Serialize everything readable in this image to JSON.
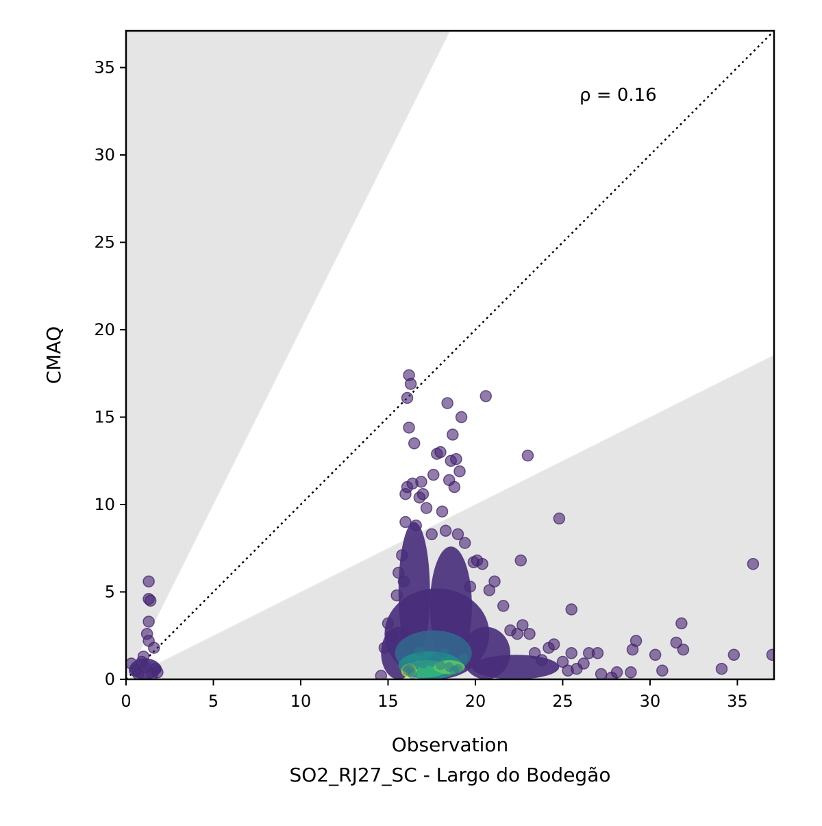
{
  "chart_data": {
    "type": "scatter",
    "title": "",
    "xlabel": "Observation",
    "ylabel": "CMAQ",
    "subtitle": "SO2_RJ27_SC - Largo do Bodegão",
    "xlim": [
      0,
      37.1
    ],
    "ylim": [
      0,
      37.1
    ],
    "xticks": [
      "0",
      "5",
      "10",
      "15",
      "20",
      "25",
      "30",
      "35"
    ],
    "yticks": [
      "0",
      "5",
      "10",
      "15",
      "20",
      "25",
      "30",
      "35"
    ],
    "grid": false,
    "annotation": "ρ = 0.16",
    "reference_line": {
      "slope": 1,
      "style": "dotted",
      "color": "#000000"
    },
    "shaded_region_slopes": {
      "upper": 2.0,
      "lower": 0.5,
      "color": "#e5e5e5"
    },
    "colormap": "viridis",
    "points": [
      [
        0.3,
        0.9
      ],
      [
        0.5,
        0.5
      ],
      [
        0.7,
        0.3
      ],
      [
        0.9,
        1.0
      ],
      [
        1.0,
        1.3
      ],
      [
        1.1,
        0.7
      ],
      [
        1.2,
        2.6
      ],
      [
        1.3,
        2.2
      ],
      [
        1.3,
        5.6
      ],
      [
        1.3,
        4.6
      ],
      [
        1.3,
        3.3
      ],
      [
        1.4,
        4.5
      ],
      [
        1.5,
        0.3
      ],
      [
        1.6,
        1.8
      ],
      [
        1.7,
        0.6
      ],
      [
        1.8,
        0.4
      ],
      [
        14.6,
        0.2
      ],
      [
        14.8,
        1.8
      ],
      [
        15.0,
        3.2
      ],
      [
        15.2,
        2.5
      ],
      [
        15.5,
        4.8
      ],
      [
        15.6,
        6.1
      ],
      [
        15.8,
        7.1
      ],
      [
        15.9,
        5.6
      ],
      [
        16.0,
        9.0
      ],
      [
        16.0,
        10.6
      ],
      [
        16.1,
        11.0
      ],
      [
        16.1,
        16.1
      ],
      [
        16.2,
        17.4
      ],
      [
        16.2,
        14.4
      ],
      [
        16.3,
        16.9
      ],
      [
        16.4,
        11.2
      ],
      [
        16.5,
        13.5
      ],
      [
        16.6,
        8.8
      ],
      [
        16.8,
        10.4
      ],
      [
        16.9,
        11.3
      ],
      [
        17.0,
        10.6
      ],
      [
        17.2,
        9.8
      ],
      [
        17.5,
        8.3
      ],
      [
        17.6,
        11.7
      ],
      [
        17.8,
        12.9
      ],
      [
        18.0,
        13.0
      ],
      [
        18.1,
        9.6
      ],
      [
        18.3,
        8.5
      ],
      [
        18.4,
        15.8
      ],
      [
        18.5,
        11.4
      ],
      [
        18.6,
        12.5
      ],
      [
        18.7,
        14.0
      ],
      [
        18.8,
        11.0
      ],
      [
        18.9,
        12.6
      ],
      [
        19.0,
        8.3
      ],
      [
        19.1,
        11.9
      ],
      [
        19.2,
        15.0
      ],
      [
        19.4,
        7.8
      ],
      [
        19.7,
        5.3
      ],
      [
        19.9,
        6.7
      ],
      [
        20.1,
        6.8
      ],
      [
        20.4,
        6.6
      ],
      [
        20.6,
        16.2
      ],
      [
        20.8,
        5.1
      ],
      [
        21.1,
        5.6
      ],
      [
        21.6,
        4.2
      ],
      [
        22.0,
        2.8
      ],
      [
        22.4,
        2.6
      ],
      [
        22.6,
        6.8
      ],
      [
        22.7,
        3.1
      ],
      [
        23.0,
        12.8
      ],
      [
        23.1,
        2.6
      ],
      [
        23.4,
        1.5
      ],
      [
        23.8,
        1.1
      ],
      [
        24.2,
        1.8
      ],
      [
        24.5,
        2.0
      ],
      [
        24.8,
        9.2
      ],
      [
        25.0,
        1.0
      ],
      [
        25.3,
        0.5
      ],
      [
        25.5,
        4.0
      ],
      [
        25.5,
        1.5
      ],
      [
        25.8,
        0.6
      ],
      [
        26.2,
        0.9
      ],
      [
        26.5,
        1.5
      ],
      [
        27.0,
        1.5
      ],
      [
        27.2,
        0.3
      ],
      [
        27.8,
        0.1
      ],
      [
        28.1,
        0.4
      ],
      [
        28.9,
        0.4
      ],
      [
        29.0,
        1.7
      ],
      [
        29.2,
        2.2
      ],
      [
        30.3,
        1.4
      ],
      [
        30.7,
        0.5
      ],
      [
        31.5,
        2.1
      ],
      [
        31.8,
        3.2
      ],
      [
        31.9,
        1.7
      ],
      [
        34.1,
        0.6
      ],
      [
        34.8,
        1.4
      ],
      [
        35.9,
        6.6
      ],
      [
        37.0,
        1.4
      ]
    ],
    "dense_core_points": [
      [
        16.1,
        0.5
      ],
      [
        16.3,
        0.4
      ],
      [
        16.2,
        0.6
      ],
      [
        16.4,
        0.3
      ],
      [
        16.0,
        0.7
      ],
      [
        16.5,
        0.8
      ],
      [
        17.0,
        0.9
      ],
      [
        17.5,
        1.0
      ],
      [
        18.0,
        0.8
      ],
      [
        18.5,
        0.7
      ],
      [
        18.8,
        0.5
      ],
      [
        19.0,
        0.6
      ],
      [
        17.8,
        1.3
      ],
      [
        18.2,
        1.5
      ],
      [
        16.8,
        1.6
      ],
      [
        19.3,
        1.2
      ]
    ]
  }
}
